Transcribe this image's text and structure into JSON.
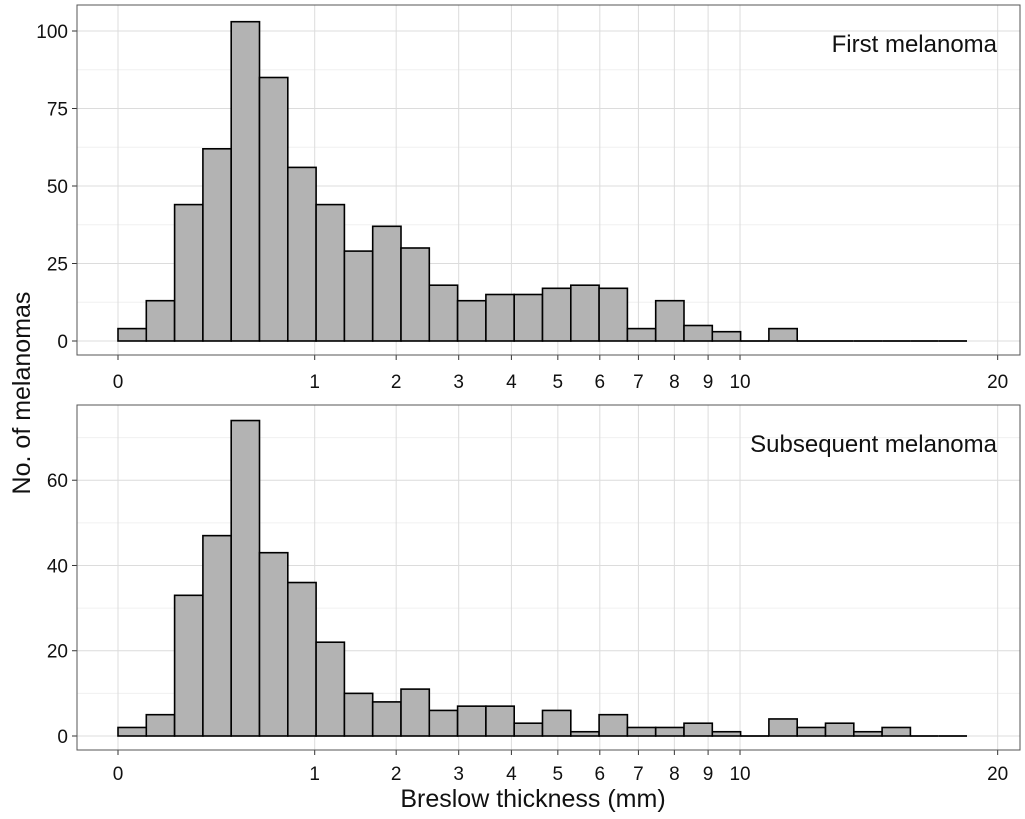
{
  "chart_data": {
    "type": "histogram",
    "xlabel": "Breslow thickness (mm)",
    "ylabel": "No. of melanomas",
    "x_scale": "square-root",
    "x_ticks": [
      0,
      1,
      2,
      3,
      4,
      5,
      6,
      7,
      8,
      9,
      10,
      20
    ],
    "x_tick_labels": [
      "0",
      "1",
      "2",
      "3",
      "4",
      "5",
      "6",
      "7",
      "8",
      "9",
      "10",
      "20"
    ],
    "grid": true,
    "bar_color": "#b3b3b3",
    "bar_edge_color": "#000000",
    "panels": [
      {
        "label": "First melanoma",
        "y_ticks": [
          0,
          25,
          50,
          75,
          100
        ],
        "y_tick_labels": [
          "0",
          "25",
          "50",
          "75",
          "100"
        ],
        "ylim": [
          0,
          105
        ],
        "counts": [
          4,
          13,
          44,
          62,
          103,
          85,
          56,
          44,
          29,
          37,
          30,
          18,
          13,
          15,
          15,
          17,
          18,
          17,
          4,
          13,
          5,
          3,
          0,
          4,
          0,
          0,
          0,
          0,
          0,
          0
        ]
      },
      {
        "label": "Subsequent melanoma",
        "y_ticks": [
          0,
          20,
          40,
          60
        ],
        "y_tick_labels": [
          "0",
          "20",
          "40",
          "60"
        ],
        "ylim": [
          0,
          76
        ],
        "counts": [
          2,
          5,
          33,
          47,
          74,
          43,
          36,
          22,
          10,
          8,
          11,
          6,
          7,
          7,
          3,
          6,
          1,
          5,
          2,
          2,
          3,
          1,
          0,
          4,
          2,
          3,
          1,
          2,
          0,
          0
        ]
      }
    ]
  }
}
